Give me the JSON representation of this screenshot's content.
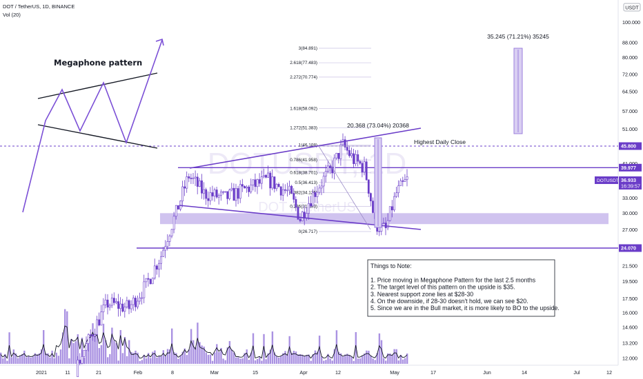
{
  "header": {
    "symbol_line": "DOT / TetherUS, 1D, BINANCE",
    "volume_line": "Vol (20)"
  },
  "currency_badge": "USDT",
  "watermark": {
    "ticker": "DOTUSDT, 1D",
    "name": "DOT / TetherUS"
  },
  "price_tags": {
    "resistance_high": "45.800",
    "resistance": "39.977",
    "support": "24.070",
    "last_symbol": "DOTUSDT",
    "last_price": "36.933",
    "countdown": "16:39:57"
  },
  "annotations": {
    "megaphone_title": "Megaphone pattern",
    "measure_small": "20.368 (73.04%) 20368",
    "measure_big": "35.245 (71.21%) 35245",
    "highest_close": "Highest Daily Close",
    "notes": [
      "Things to Note:",
      "",
      "1. Price moving in Megaphone Pattern for the last 2.5 months",
      "2. The target level of this pattern on the upside is $35.",
      "3. Nearest support zone lies at $28-30",
      "4. On the downside, if 28-30 doesn't hold, we can see $20.",
      "5. Since we are in the Bull market, it is more likely to BO to the upside."
    ]
  },
  "fibonacci": [
    {
      "label": "3(84.891)",
      "price": 84.891
    },
    {
      "label": "2.618(77.483)",
      "price": 77.483
    },
    {
      "label": "2.272(70.774)",
      "price": 70.774
    },
    {
      "label": "1.618(58.092)",
      "price": 58.092
    },
    {
      "label": "1.272(51.383)",
      "price": 51.383
    },
    {
      "label": "1(46.108)",
      "price": 46.108
    },
    {
      "label": "0.786(41.958)",
      "price": 41.958
    },
    {
      "label": "0.618(38.701)",
      "price": 38.701
    },
    {
      "label": "0.5(36.413)",
      "price": 36.413
    },
    {
      "label": "0.382(34.125)",
      "price": 34.125
    },
    {
      "label": "0.236(31.293)",
      "price": 31.293
    },
    {
      "label": "0(26.717)",
      "price": 26.717
    }
  ],
  "colors": {
    "line": "#6a3cc8",
    "candle": "#6a3cc8",
    "zone": "#b7a3e6",
    "volume": "#9b7fdd",
    "volume_ma": "#131722",
    "tag_bg": "#6a3cc8"
  },
  "chart_data": {
    "type": "candlestick",
    "title": "DOT / TetherUS, 1D, BINANCE",
    "y_axis_ticks": [
      "100.000",
      "88.000",
      "80.000",
      "72.000",
      "64.500",
      "57.000",
      "51.000",
      "45.800",
      "41.000",
      "39.977",
      "36.933",
      "33.000",
      "30.000",
      "27.000",
      "24.070",
      "21.500",
      "19.500",
      "17.500",
      "16.000",
      "14.600",
      "13.200",
      "12.000"
    ],
    "x_axis_ticks": [
      "2021",
      "11",
      "21",
      "Feb",
      "8",
      "15",
      "Mar",
      "15",
      "Apr",
      "12",
      "May",
      "17",
      "Jun",
      "14",
      "Jul",
      "12"
    ],
    "scale": "log",
    "ylim": [
      11.5,
      115
    ],
    "levels": {
      "resistance_high": 45.8,
      "resistance": 39.977,
      "support": 24.07,
      "support_zone": [
        28,
        30
      ]
    },
    "candles": [
      {
        "period": "Feb (late)",
        "approx_close": 34
      },
      {
        "period": "Mar",
        "approx_close": 36
      },
      {
        "period": "Apr",
        "approx_close": 42
      },
      {
        "period": "Apr (high)",
        "approx_close": 46.1
      },
      {
        "period": "Apr (low)",
        "approx_close": 27
      },
      {
        "period": "May",
        "approx_close": 36.933
      }
    ]
  }
}
